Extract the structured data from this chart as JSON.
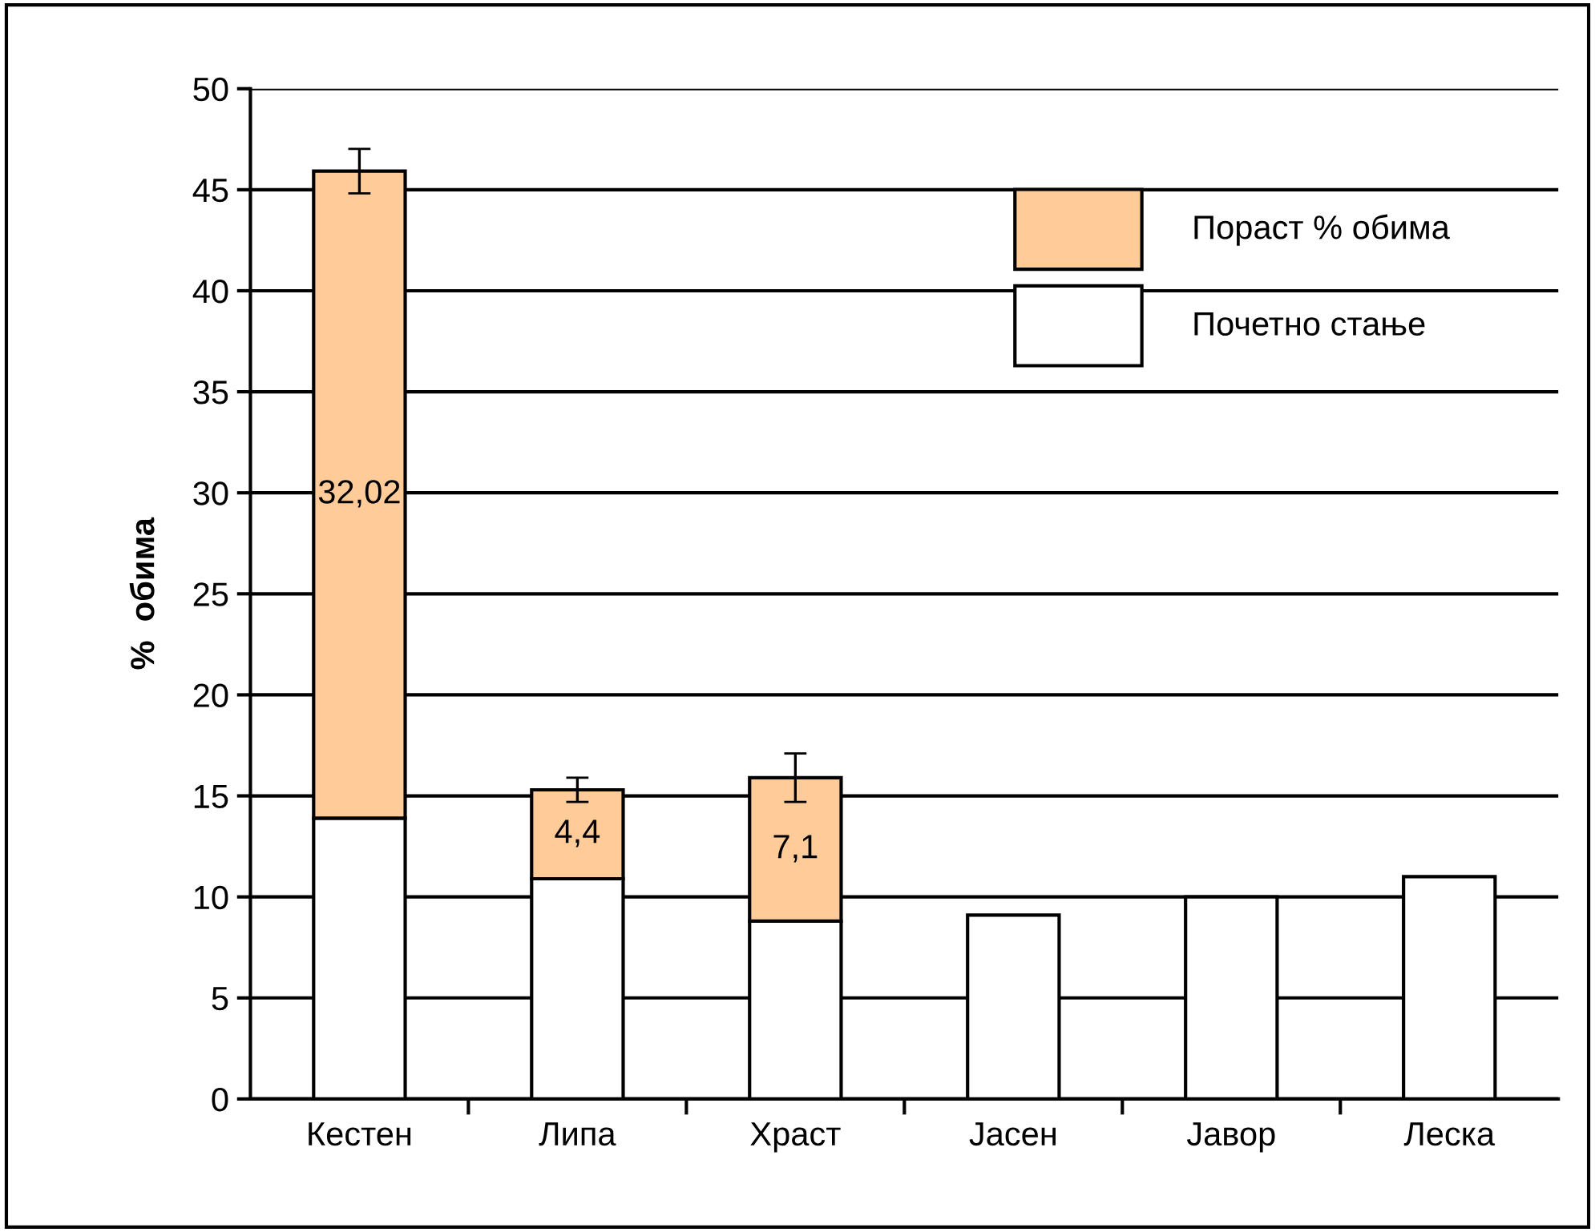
{
  "chart_data": {
    "type": "bar",
    "stacked": true,
    "ylabel": "%  обима",
    "categories": [
      "Кестен",
      "Липа",
      "Храст",
      "Јасен",
      "Јавор",
      "Леска"
    ],
    "series": [
      {
        "name": "Почетно стање",
        "color": "#ffffff",
        "values": [
          13.9,
          10.9,
          8.8,
          9.1,
          10,
          11
        ]
      },
      {
        "name": "Пораст % обима",
        "color": "#ffcc99",
        "values": [
          32.02,
          4.4,
          7.1,
          null,
          null,
          null
        ],
        "errors": [
          1.1,
          0.6,
          1.2,
          null,
          null,
          null
        ],
        "value_labels": [
          "32,02",
          "4,4",
          "7,1",
          null,
          null,
          null
        ]
      }
    ],
    "ylim": [
      0,
      50
    ],
    "yticks": [
      0,
      5,
      10,
      15,
      20,
      25,
      30,
      35,
      40,
      45,
      50
    ],
    "grid": "y",
    "legend": "top right"
  }
}
